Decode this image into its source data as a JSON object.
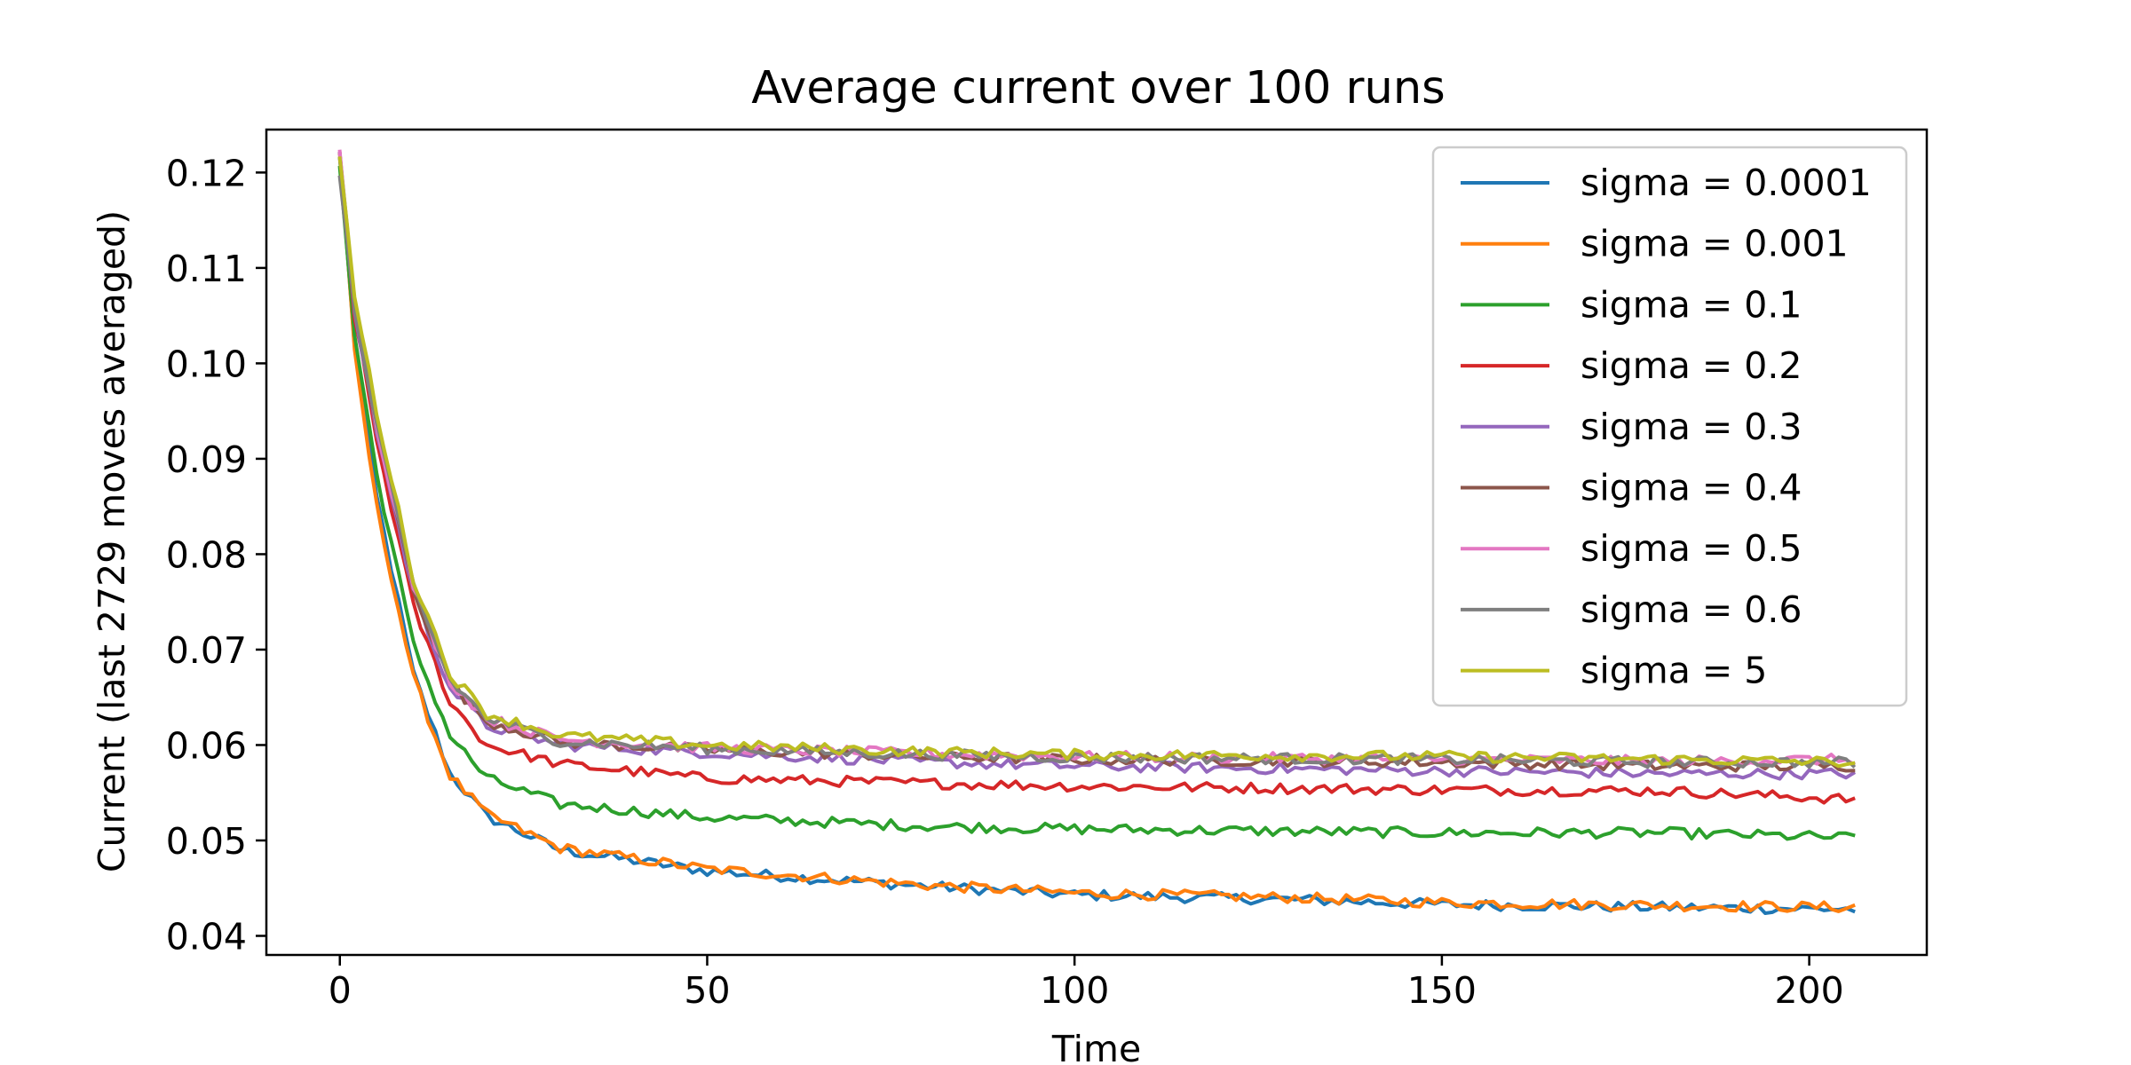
{
  "chart_data": {
    "type": "line",
    "title": "Average current over 100 runs",
    "xlabel": "Time",
    "ylabel": "Current (last 2729 moves averaged)",
    "xlim": [
      -10,
      216
    ],
    "ylim": [
      0.038,
      0.1245
    ],
    "xticks": [
      0,
      50,
      100,
      150,
      200
    ],
    "xtick_labels": [
      "0",
      "50",
      "100",
      "150",
      "200"
    ],
    "yticks": [
      0.04,
      0.05,
      0.06,
      0.07,
      0.08,
      0.09,
      0.1,
      0.11,
      0.12
    ],
    "ytick_labels": [
      "0.04",
      "0.05",
      "0.06",
      "0.07",
      "0.08",
      "0.09",
      "0.10",
      "0.11",
      "0.12"
    ],
    "grid": false,
    "legend_position": "top-right",
    "x_range": [
      0,
      206
    ],
    "series": [
      {
        "name": "sigma = 0.0001",
        "color": "#1f77b4",
        "points": [
          [
            0,
            0.1215
          ],
          [
            2,
            0.102
          ],
          [
            5,
            0.086
          ],
          [
            10,
            0.0675
          ],
          [
            15,
            0.057
          ],
          [
            20,
            0.0525
          ],
          [
            30,
            0.049
          ],
          [
            50,
            0.0468
          ],
          [
            80,
            0.0452
          ],
          [
            100,
            0.0443
          ],
          [
            130,
            0.0438
          ],
          [
            150,
            0.0433
          ],
          [
            180,
            0.043
          ],
          [
            206,
            0.0428
          ]
        ]
      },
      {
        "name": "sigma = 0.001",
        "color": "#ff7f0e",
        "points": [
          [
            0,
            0.122
          ],
          [
            2,
            0.101
          ],
          [
            5,
            0.085
          ],
          [
            10,
            0.067
          ],
          [
            15,
            0.0568
          ],
          [
            20,
            0.0527
          ],
          [
            30,
            0.0492
          ],
          [
            50,
            0.047
          ],
          [
            80,
            0.0453
          ],
          [
            100,
            0.0445
          ],
          [
            130,
            0.044
          ],
          [
            150,
            0.0435
          ],
          [
            180,
            0.0432
          ],
          [
            206,
            0.043
          ]
        ]
      },
      {
        "name": "sigma = 0.1",
        "color": "#2ca02c",
        "points": [
          [
            0,
            0.1205
          ],
          [
            2,
            0.103
          ],
          [
            5,
            0.0885
          ],
          [
            10,
            0.0705
          ],
          [
            15,
            0.061
          ],
          [
            20,
            0.0565
          ],
          [
            30,
            0.0538
          ],
          [
            50,
            0.0524
          ],
          [
            80,
            0.0515
          ],
          [
            100,
            0.0512
          ],
          [
            150,
            0.0508
          ],
          [
            180,
            0.0508
          ],
          [
            206,
            0.0503
          ]
        ]
      },
      {
        "name": "sigma = 0.2",
        "color": "#d62728",
        "points": [
          [
            0,
            0.122
          ],
          [
            2,
            0.105
          ],
          [
            5,
            0.092
          ],
          [
            10,
            0.0745
          ],
          [
            15,
            0.0645
          ],
          [
            20,
            0.06
          ],
          [
            30,
            0.058
          ],
          [
            50,
            0.0565
          ],
          [
            80,
            0.056
          ],
          [
            100,
            0.0557
          ],
          [
            150,
            0.0553
          ],
          [
            180,
            0.0552
          ],
          [
            206,
            0.0543
          ]
        ]
      },
      {
        "name": "sigma = 0.3",
        "color": "#9467bd",
        "points": [
          [
            0,
            0.122
          ],
          [
            2,
            0.1055
          ],
          [
            5,
            0.093
          ],
          [
            10,
            0.076
          ],
          [
            15,
            0.066
          ],
          [
            20,
            0.062
          ],
          [
            30,
            0.06
          ],
          [
            50,
            0.0592
          ],
          [
            80,
            0.0582
          ],
          [
            100,
            0.0578
          ],
          [
            150,
            0.0573
          ],
          [
            180,
            0.057
          ],
          [
            206,
            0.057
          ]
        ]
      },
      {
        "name": "sigma = 0.4",
        "color": "#8c564b",
        "points": [
          [
            0,
            0.1215
          ],
          [
            2,
            0.106
          ],
          [
            5,
            0.0935
          ],
          [
            10,
            0.0765
          ],
          [
            15,
            0.0665
          ],
          [
            20,
            0.0625
          ],
          [
            30,
            0.0603
          ],
          [
            50,
            0.0595
          ],
          [
            80,
            0.0588
          ],
          [
            100,
            0.0585
          ],
          [
            150,
            0.0582
          ],
          [
            180,
            0.0578
          ],
          [
            206,
            0.0578
          ]
        ]
      },
      {
        "name": "sigma = 0.5",
        "color": "#e377c2",
        "points": [
          [
            0,
            0.1222
          ],
          [
            2,
            0.1062
          ],
          [
            5,
            0.0937
          ],
          [
            10,
            0.0767
          ],
          [
            15,
            0.0667
          ],
          [
            20,
            0.0628
          ],
          [
            30,
            0.0606
          ],
          [
            50,
            0.0597
          ],
          [
            80,
            0.0591
          ],
          [
            100,
            0.0588
          ],
          [
            150,
            0.0585
          ],
          [
            180,
            0.0583
          ],
          [
            206,
            0.0585
          ]
        ]
      },
      {
        "name": "sigma = 0.6",
        "color": "#7f7f7f",
        "points": [
          [
            0,
            0.1195
          ],
          [
            2,
            0.1055
          ],
          [
            5,
            0.0935
          ],
          [
            10,
            0.0768
          ],
          [
            15,
            0.0668
          ],
          [
            20,
            0.0628
          ],
          [
            30,
            0.0604
          ],
          [
            50,
            0.0596
          ],
          [
            80,
            0.059
          ],
          [
            100,
            0.0587
          ],
          [
            150,
            0.0585
          ],
          [
            180,
            0.0582
          ],
          [
            206,
            0.0582
          ]
        ]
      },
      {
        "name": "sigma = 5",
        "color": "#bcbd22",
        "points": [
          [
            0,
            0.1215
          ],
          [
            2,
            0.107
          ],
          [
            5,
            0.095
          ],
          [
            10,
            0.0775
          ],
          [
            15,
            0.0675
          ],
          [
            20,
            0.0633
          ],
          [
            30,
            0.061
          ],
          [
            50,
            0.06
          ],
          [
            80,
            0.0593
          ],
          [
            100,
            0.059
          ],
          [
            150,
            0.0588
          ],
          [
            180,
            0.0585
          ],
          [
            206,
            0.0582
          ]
        ]
      }
    ]
  }
}
